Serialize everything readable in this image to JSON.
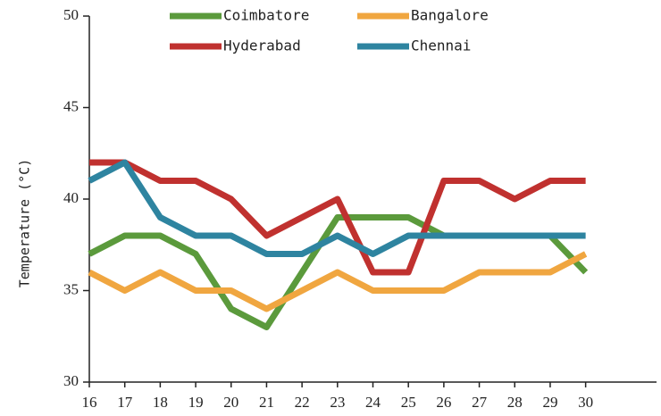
{
  "chart_data": {
    "type": "line",
    "y_label": "Temperature (°C)",
    "x": [
      16,
      17,
      18,
      19,
      20,
      21,
      22,
      23,
      24,
      25,
      26,
      27,
      28,
      29,
      30
    ],
    "xlim": [
      16,
      32
    ],
    "xticks": [
      16,
      17,
      18,
      19,
      20,
      21,
      22,
      23,
      24,
      25,
      26,
      27,
      28,
      29,
      30
    ],
    "ylim": [
      30,
      50
    ],
    "yticks": [
      30,
      35,
      40,
      45,
      50
    ],
    "legend": "top",
    "series": [
      {
        "name": "Coimbatore",
        "color": "#5b9a3c",
        "values": [
          37,
          38,
          38,
          37,
          34,
          33,
          36,
          39,
          39,
          39,
          38,
          38,
          38,
          38,
          36
        ]
      },
      {
        "name": "Bangalore",
        "color": "#f0a640",
        "values": [
          36,
          35,
          36,
          35,
          35,
          34,
          35,
          36,
          35,
          35,
          35,
          36,
          36,
          36,
          37
        ]
      },
      {
        "name": "Hyderabad",
        "color": "#c0312f",
        "values": [
          42,
          42,
          41,
          41,
          40,
          38,
          39,
          40,
          36,
          36,
          41,
          41,
          40,
          41,
          41
        ]
      },
      {
        "name": "Chennai",
        "color": "#2e84a0",
        "values": [
          41,
          42,
          39,
          38,
          38,
          37,
          37,
          38,
          37,
          38,
          38,
          38,
          38,
          38,
          38
        ]
      }
    ]
  }
}
